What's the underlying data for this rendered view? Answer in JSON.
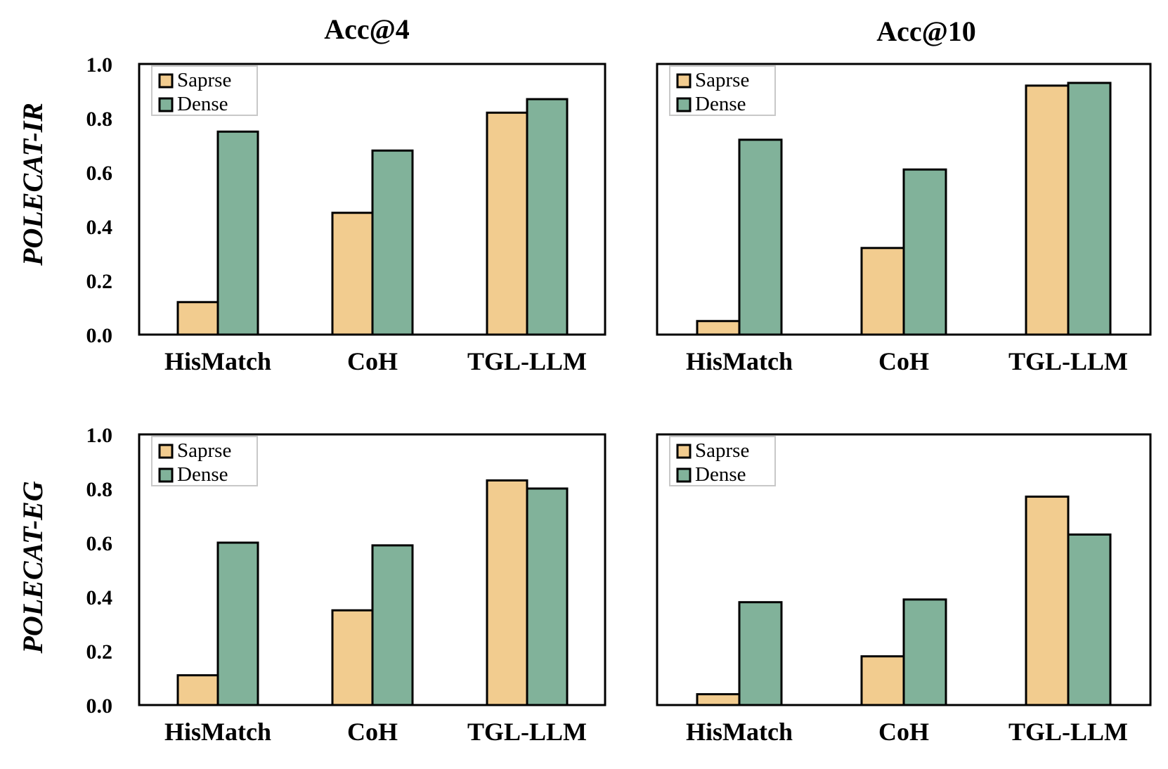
{
  "colors": {
    "sparse": "#F2CC8F",
    "dense": "#81B29A",
    "stroke": "#000000",
    "legend_border": "#C8C8C8"
  },
  "column_titles": [
    "Acc@4",
    "Acc@10"
  ],
  "row_labels": [
    "POLECAT-IR",
    "POLECAT-EG"
  ],
  "chart_data": [
    {
      "type": "bar",
      "dataset": "POLECAT-IR",
      "metric": "Acc@4",
      "categories": [
        "HisMatch",
        "CoH",
        "TGL-LLM"
      ],
      "series": [
        {
          "name": "Saprse",
          "values": [
            0.12,
            0.45,
            0.82
          ]
        },
        {
          "name": "Dense",
          "values": [
            0.75,
            0.68,
            0.87
          ]
        }
      ],
      "yticks": [
        "0.0",
        "0.2",
        "0.4",
        "0.6",
        "0.8",
        "1.0"
      ],
      "ylim": [
        0,
        1
      ],
      "legend": "top-left"
    },
    {
      "type": "bar",
      "dataset": "POLECAT-IR",
      "metric": "Acc@10",
      "categories": [
        "HisMatch",
        "CoH",
        "TGL-LLM"
      ],
      "series": [
        {
          "name": "Saprse",
          "values": [
            0.05,
            0.32,
            0.92
          ]
        },
        {
          "name": "Dense",
          "values": [
            0.72,
            0.61,
            0.93
          ]
        }
      ],
      "ylim": [
        0,
        1
      ],
      "legend": "top-left"
    },
    {
      "type": "bar",
      "dataset": "POLECAT-EG",
      "metric": "Acc@4",
      "categories": [
        "HisMatch",
        "CoH",
        "TGL-LLM"
      ],
      "series": [
        {
          "name": "Saprse",
          "values": [
            0.11,
            0.35,
            0.83
          ]
        },
        {
          "name": "Dense",
          "values": [
            0.6,
            0.59,
            0.8
          ]
        }
      ],
      "yticks": [
        "0.0",
        "0.2",
        "0.4",
        "0.6",
        "0.8",
        "1.0"
      ],
      "ylim": [
        0,
        1
      ],
      "legend": "top-left"
    },
    {
      "type": "bar",
      "dataset": "POLECAT-EG",
      "metric": "Acc@10",
      "categories": [
        "HisMatch",
        "CoH",
        "TGL-LLM"
      ],
      "series": [
        {
          "name": "Saprse",
          "values": [
            0.04,
            0.18,
            0.77
          ]
        },
        {
          "name": "Dense",
          "values": [
            0.38,
            0.39,
            0.63
          ]
        }
      ],
      "ylim": [
        0,
        1
      ],
      "legend": "top-left"
    }
  ]
}
